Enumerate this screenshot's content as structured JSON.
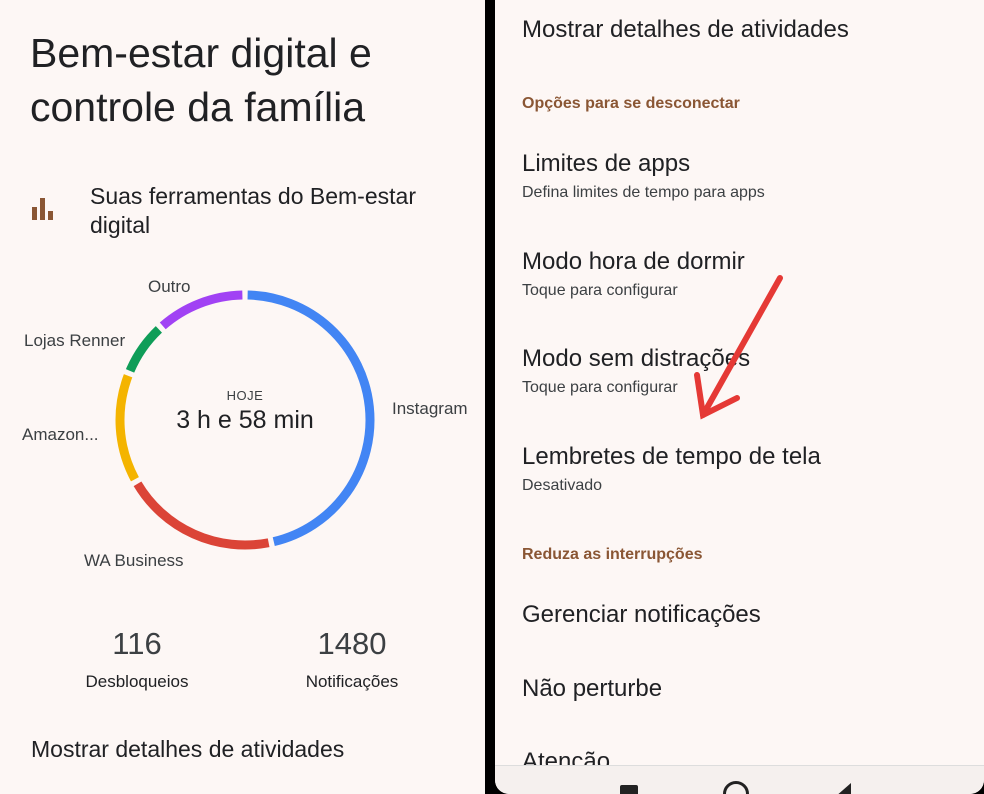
{
  "left": {
    "title_line1": "Bem-estar digital e",
    "title_line2": "controle da família",
    "tools_title": "Suas ferramentas do Bem-estar digital",
    "period_label": "HOJE",
    "total_time": "3 h e 58 min",
    "unlocks": {
      "value": "116",
      "label": "Desbloqueios"
    },
    "notifications": {
      "value": "1480",
      "label": "Notificações"
    },
    "show_details": "Mostrar detalhes de atividades"
  },
  "chart_data": {
    "type": "pie",
    "title": "",
    "total_label": "3 h e 58 min",
    "categories": [
      "Instagram",
      "WA Business",
      "Amazon...",
      "Lojas Renner",
      "Outro"
    ],
    "values": [
      111,
      48,
      34,
      17,
      28
    ],
    "colors": [
      "#4285f4",
      "#db4437",
      "#f4b400",
      "#0f9d58",
      "#a142f4"
    ]
  },
  "right": {
    "show_details": "Mostrar detalhes de atividades",
    "section_disconnect": "Opções para se desconectar",
    "items": [
      {
        "title": "Limites de apps",
        "subtitle": "Defina limites de tempo para apps"
      },
      {
        "title": "Modo hora de dormir",
        "subtitle": "Toque para configurar"
      },
      {
        "title": "Modo sem distrações",
        "subtitle": "Toque para configurar"
      },
      {
        "title": "Lembretes de tempo de tela",
        "subtitle": "Desativado"
      }
    ],
    "section_interruptions": "Reduza as interrupções",
    "manage_notifications": "Gerenciar notificações",
    "do_not_disturb": "Não perturbe",
    "attention": "Atenção",
    "arrow_color": "#e53935"
  }
}
